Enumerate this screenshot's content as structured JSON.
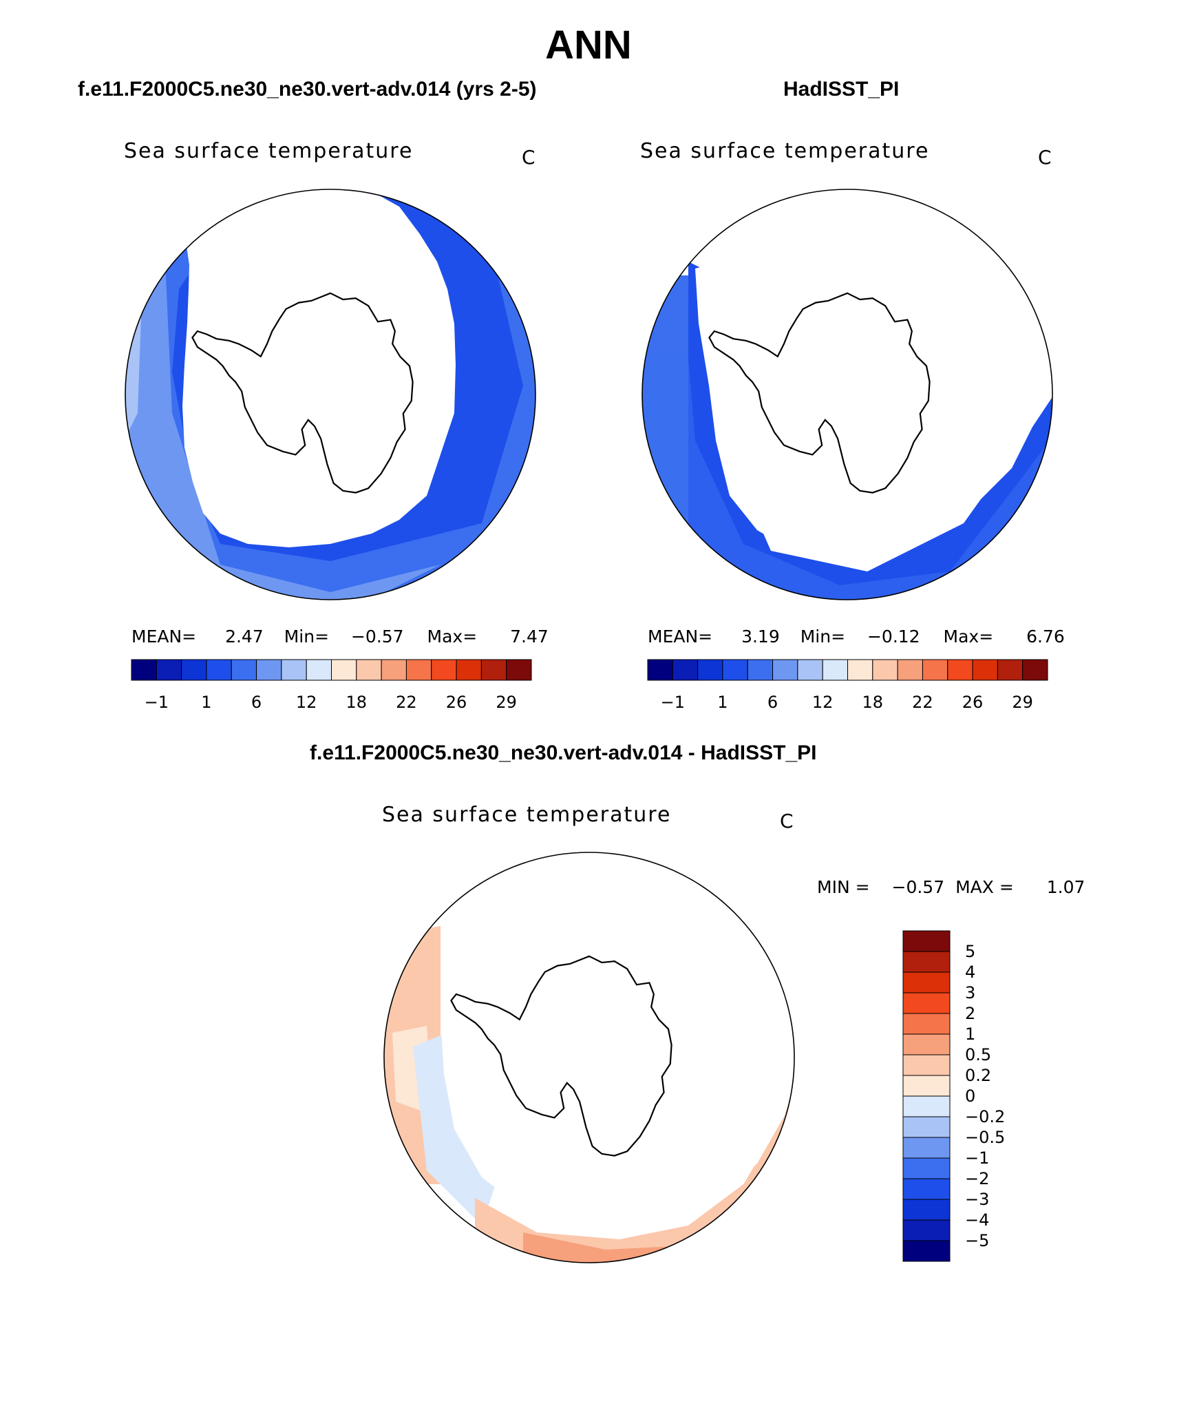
{
  "figure": {
    "title": "ANN",
    "panels": [
      {
        "id": "model",
        "title": "f.e11.F2000C5.ne30_ne30.vert-adv.014 (yrs 2-5)",
        "subtitle": "Sea surface temperature",
        "units": "C",
        "stats": {
          "mean_label": "MEAN=",
          "mean": "2.47",
          "min_label": "Min=",
          "min": "−0.57",
          "max_label": "Max=",
          "max": "7.47"
        }
      },
      {
        "id": "obs",
        "title": "HadISST_PI",
        "subtitle": "Sea surface temperature",
        "units": "C",
        "stats": {
          "mean_label": "MEAN=",
          "mean": "3.19",
          "min_label": "Min=",
          "min": "−0.12",
          "max_label": "Max=",
          "max": "6.76"
        }
      },
      {
        "id": "diff",
        "title": "f.e11.F2000C5.ne30_ne30.vert-adv.014 - HadISST_PI",
        "subtitle": "Sea surface temperature",
        "units": "C",
        "stats": {
          "min_label": "MIN =",
          "min": "−0.57",
          "max_label": "MAX =",
          "max": "1.07"
        }
      }
    ],
    "colorbar_abs": {
      "colors": [
        "#00007f",
        "#0a1db4",
        "#0d35d6",
        "#1e4fea",
        "#3b6ff0",
        "#6e97f2",
        "#a9c3f6",
        "#d9e8fb",
        "#fde7d5",
        "#fbc8ac",
        "#f6a07c",
        "#f5744a",
        "#f24a1e",
        "#dc3008",
        "#b0200c",
        "#7c0a0a"
      ],
      "tick_labels": [
        "−1",
        "1",
        "6",
        "12",
        "18",
        "22",
        "26",
        "29"
      ]
    },
    "colorbar_diff": {
      "colors": [
        "#7c0a0a",
        "#b0200c",
        "#dc3008",
        "#f24a1e",
        "#f5744a",
        "#f6a07c",
        "#fbc8ac",
        "#fde7d5",
        "#d9e8fb",
        "#a9c3f6",
        "#6e97f2",
        "#3b6ff0",
        "#1e4fea",
        "#0d35d6",
        "#0a1db4",
        "#00007f"
      ],
      "tick_labels": [
        "5",
        "4",
        "3",
        "2",
        "1",
        "0.5",
        "0.2",
        "0",
        "−0.2",
        "−0.5",
        "−1",
        "−2",
        "−3",
        "−4",
        "−5"
      ]
    },
    "colors": {
      "ocean_deep": "#1e4fea",
      "ocean_mid": "#3b6ff0",
      "ocean_light": "#6e97f2",
      "ocean_paler": "#a9c3f6",
      "diff_warm": "#fbc8ac",
      "diff_warmer": "#f6a07c",
      "diff_cream": "#fde7d5",
      "diff_cool": "#d9e8fb"
    }
  }
}
